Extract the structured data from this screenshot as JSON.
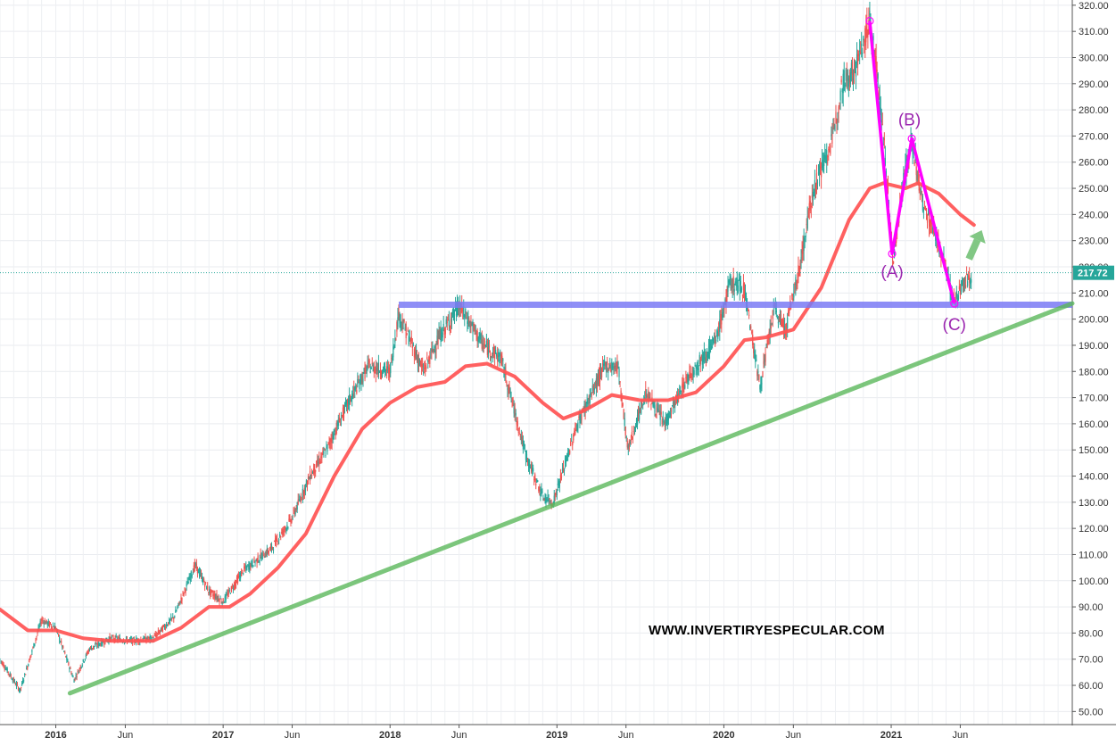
{
  "chart_data": {
    "type": "candlestick",
    "title": "",
    "xlabel": "",
    "ylabel": "",
    "ylim": [
      45,
      322
    ],
    "y_ticks": [
      50,
      60,
      70,
      80,
      90,
      100,
      110,
      120,
      130,
      140,
      150,
      160,
      170,
      180,
      190,
      200,
      210,
      220,
      230,
      240,
      250,
      260,
      270,
      280,
      290,
      300,
      310,
      320
    ],
    "y_tick_labels": [
      "50.00",
      "60.00",
      "70.00",
      "80.00",
      "90.00",
      "100.00",
      "110.00",
      "120.00",
      "130.00",
      "140.00",
      "150.00",
      "160.00",
      "170.00",
      "180.00",
      "190.00",
      "200.00",
      "210.00",
      "220.00",
      "230.00",
      "240.00",
      "250.00",
      "260.00",
      "270.00",
      "280.00",
      "290.00",
      "300.00",
      "310.00",
      "320.00"
    ],
    "x_range": [
      "2015-09-01",
      "2022-02-01"
    ],
    "x_ticks": [
      {
        "date": "2016-01-01",
        "label": "2016",
        "year": true
      },
      {
        "date": "2016-06-01",
        "label": "Jun",
        "year": false
      },
      {
        "date": "2017-01-01",
        "label": "2017",
        "year": true
      },
      {
        "date": "2017-06-01",
        "label": "Jun",
        "year": false
      },
      {
        "date": "2018-01-01",
        "label": "2018",
        "year": true
      },
      {
        "date": "2018-06-01",
        "label": "Jun",
        "year": false
      },
      {
        "date": "2019-01-01",
        "label": "2019",
        "year": true
      },
      {
        "date": "2019-06-01",
        "label": "Jun",
        "year": false
      },
      {
        "date": "2020-01-01",
        "label": "2020",
        "year": true
      },
      {
        "date": "2020-06-01",
        "label": "Jun",
        "year": false
      },
      {
        "date": "2021-01-01",
        "label": "2021",
        "year": true
      },
      {
        "date": "2021-06-01",
        "label": "Jun",
        "year": false
      }
    ],
    "grid": true,
    "last_price": 217.72,
    "last_price_label": "217.72",
    "price_path": [
      [
        "2015-09-01",
        70
      ],
      [
        "2015-10-15",
        58
      ],
      [
        "2015-12-01",
        85
      ],
      [
        "2016-01-01",
        82
      ],
      [
        "2016-02-10",
        62
      ],
      [
        "2016-03-15",
        74
      ],
      [
        "2016-05-01",
        78
      ],
      [
        "2016-06-15",
        77
      ],
      [
        "2016-08-01",
        78
      ],
      [
        "2016-09-15",
        86
      ],
      [
        "2016-11-01",
        106
      ],
      [
        "2016-12-01",
        96
      ],
      [
        "2017-01-01",
        92
      ],
      [
        "2017-02-15",
        104
      ],
      [
        "2017-04-15",
        112
      ],
      [
        "2017-06-01",
        124
      ],
      [
        "2017-07-10",
        140
      ],
      [
        "2017-08-15",
        150
      ],
      [
        "2017-10-01",
        168
      ],
      [
        "2017-11-15",
        182
      ],
      [
        "2018-01-01",
        180
      ],
      [
        "2018-01-20",
        202
      ],
      [
        "2018-03-15",
        180
      ],
      [
        "2018-04-15",
        192
      ],
      [
        "2018-06-01",
        205
      ],
      [
        "2018-07-25",
        190
      ],
      [
        "2018-09-01",
        185
      ],
      [
        "2018-10-25",
        148
      ],
      [
        "2018-12-01",
        132
      ],
      [
        "2018-12-24",
        130
      ],
      [
        "2019-02-15",
        160
      ],
      [
        "2019-04-15",
        182
      ],
      [
        "2019-05-15",
        182
      ],
      [
        "2019-06-05",
        150
      ],
      [
        "2019-07-15",
        172
      ],
      [
        "2019-08-25",
        160
      ],
      [
        "2019-10-15",
        178
      ],
      [
        "2019-12-15",
        192
      ],
      [
        "2020-01-15",
        214
      ],
      [
        "2020-02-15",
        212
      ],
      [
        "2020-03-20",
        174
      ],
      [
        "2020-04-20",
        204
      ],
      [
        "2020-05-15",
        196
      ],
      [
        "2020-06-15",
        220
      ],
      [
        "2020-07-15",
        250
      ],
      [
        "2020-08-25",
        268
      ],
      [
        "2020-09-15",
        290
      ],
      [
        "2020-10-15",
        296
      ],
      [
        "2020-11-15",
        314
      ],
      [
        "2020-12-01",
        295
      ],
      [
        "2020-12-20",
        260
      ],
      [
        "2021-01-05",
        222
      ],
      [
        "2021-01-25",
        250
      ],
      [
        "2021-02-15",
        268
      ],
      [
        "2021-03-10",
        244
      ],
      [
        "2021-04-10",
        232
      ],
      [
        "2021-05-05",
        216
      ],
      [
        "2021-05-19",
        206
      ],
      [
        "2021-06-10",
        214
      ],
      [
        "2021-06-25",
        216
      ]
    ],
    "series": [
      {
        "name": "",
        "kind": "moving-average",
        "color": "#ff5252",
        "points": [
          [
            "2015-09-01",
            89
          ],
          [
            "2015-11-01",
            81
          ],
          [
            "2016-01-01",
            81
          ],
          [
            "2016-03-01",
            78
          ],
          [
            "2016-05-01",
            77
          ],
          [
            "2016-08-01",
            77
          ],
          [
            "2016-10-01",
            82
          ],
          [
            "2016-12-01",
            90
          ],
          [
            "2017-01-15",
            90
          ],
          [
            "2017-03-01",
            95
          ],
          [
            "2017-05-01",
            105
          ],
          [
            "2017-07-01",
            118
          ],
          [
            "2017-09-01",
            140
          ],
          [
            "2017-11-01",
            158
          ],
          [
            "2018-01-01",
            168
          ],
          [
            "2018-03-01",
            174
          ],
          [
            "2018-05-01",
            176
          ],
          [
            "2018-06-15",
            182
          ],
          [
            "2018-08-01",
            183
          ],
          [
            "2018-10-01",
            178
          ],
          [
            "2018-12-01",
            168
          ],
          [
            "2019-01-15",
            162
          ],
          [
            "2019-03-01",
            165
          ],
          [
            "2019-05-01",
            171
          ],
          [
            "2019-07-01",
            169
          ],
          [
            "2019-09-01",
            169
          ],
          [
            "2019-11-01",
            172
          ],
          [
            "2020-01-01",
            182
          ],
          [
            "2020-02-15",
            192
          ],
          [
            "2020-04-01",
            193
          ],
          [
            "2020-06-01",
            196
          ],
          [
            "2020-08-01",
            212
          ],
          [
            "2020-10-01",
            238
          ],
          [
            "2020-11-15",
            250
          ],
          [
            "2020-12-15",
            252
          ],
          [
            "2021-02-01",
            250
          ],
          [
            "2021-03-01",
            252
          ],
          [
            "2021-04-15",
            248
          ],
          [
            "2021-06-01",
            240
          ],
          [
            "2021-07-01",
            236
          ]
        ]
      }
    ],
    "drawings": {
      "resistance_line": {
        "color": "#7b7bf5",
        "x": [
          "2018-01-20",
          "2022-02-01"
        ],
        "y": 205.5
      },
      "trend_line": {
        "color": "#5cb85c",
        "points": [
          [
            "2016-02-01",
            57
          ],
          [
            "2022-02-01",
            206
          ]
        ]
      },
      "wave_path": {
        "color": "#ff00ff",
        "points": [
          [
            "2020-11-15",
            314
          ],
          [
            "2021-01-03",
            225
          ],
          [
            "2021-02-15",
            269
          ],
          [
            "2021-05-19",
            206
          ]
        ]
      },
      "wave_labels": [
        {
          "text": "(A)",
          "date": "2021-01-03",
          "value": 222,
          "anchor": "below"
        },
        {
          "text": "(B)",
          "date": "2021-02-10",
          "value": 272,
          "anchor": "above"
        },
        {
          "text": "(C)",
          "date": "2021-05-19",
          "value": 202,
          "anchor": "below"
        }
      ],
      "wave_label_color": "#9c27b0",
      "arrow": {
        "color": "#81c784",
        "from": [
          "2021-06-20",
          223
        ],
        "to": [
          "2021-07-18",
          234
        ]
      }
    },
    "watermark": "WWW.INVERTIRYESPECULAR.COM"
  }
}
